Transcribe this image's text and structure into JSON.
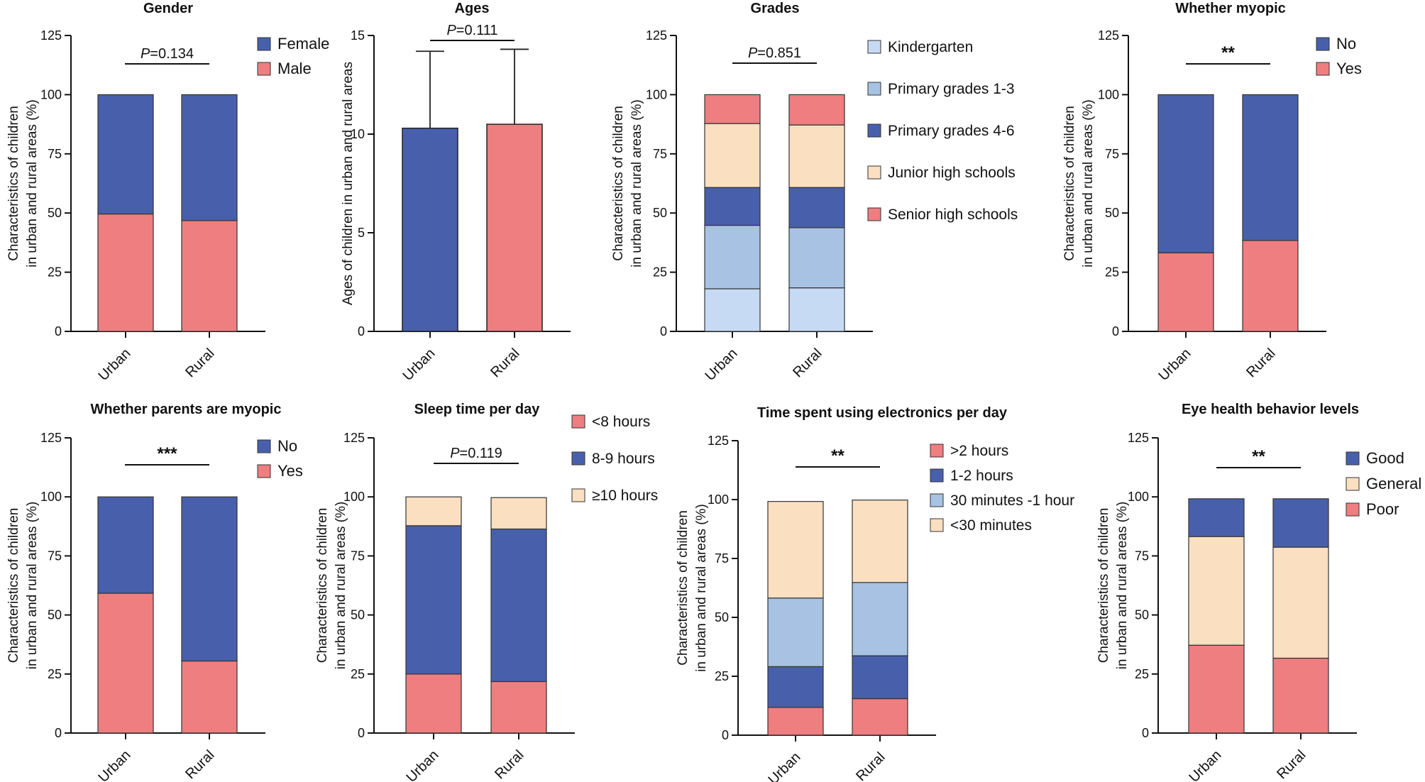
{
  "colors": {
    "female": "#4860AB",
    "male": "#EE7E80",
    "kindergarten": "#C6DAF4",
    "primary13": "#A7C2E3",
    "primary46": "#4860AB",
    "junior": "#FBDFC1",
    "senior": "#EE7E80",
    "cream": "#FBDFC1",
    "lightblue": "#A7C2E3",
    "blue": "#4860AB",
    "red": "#EE7E80"
  },
  "chart_data": [
    {
      "id": "gender",
      "type": "bar",
      "stacked": true,
      "title": "Gender",
      "ylabel": [
        "Characteristics of children",
        "in urban and rural areas (%)"
      ],
      "categories": [
        "Urban",
        "Rural"
      ],
      "ylim": [
        0,
        125
      ],
      "yticks": [
        0,
        25,
        50,
        75,
        100,
        125
      ],
      "yticklabels": [
        "0",
        "25",
        "50",
        "75",
        "100",
        "125"
      ],
      "series": [
        {
          "name": "Male",
          "color": "male",
          "values": [
            49.6,
            46.8
          ]
        },
        {
          "name": "Female",
          "color": "female",
          "values": [
            50.4,
            53.2
          ]
        }
      ],
      "legend": [
        {
          "name": "Female",
          "color": "female"
        },
        {
          "name": "Male",
          "color": "male"
        }
      ],
      "annotation": {
        "italic": "P",
        "rest": "=0.134"
      }
    },
    {
      "id": "ages",
      "type": "bar",
      "stacked": false,
      "title": "Ages",
      "ylabel": [
        "Ages of children in urban and rural areas"
      ],
      "categories": [
        "Urban",
        "Rural"
      ],
      "ylim": [
        0,
        15
      ],
      "yticks": [
        0,
        5,
        10,
        15
      ],
      "yticklabels": [
        "0",
        "5",
        "10",
        "15"
      ],
      "values": [
        10.3,
        10.5
      ],
      "errors": [
        3.9,
        3.8
      ],
      "bar_colors": [
        "female",
        "male"
      ],
      "legend": [],
      "annotation": {
        "italic": "P",
        "rest": "=0.111"
      }
    },
    {
      "id": "grades",
      "type": "bar",
      "stacked": true,
      "title": "Grades",
      "ylabel": [
        "Characteristics of children",
        "in urban and rural areas (%)"
      ],
      "categories": [
        "Urban",
        "Rural"
      ],
      "ylim": [
        0,
        125
      ],
      "yticks": [
        0,
        25,
        50,
        75,
        100,
        125
      ],
      "yticklabels": [
        "0",
        "25",
        "50",
        "75",
        "100",
        "125"
      ],
      "series": [
        {
          "name": "Kindergarten",
          "color": "kindergarten",
          "values": [
            18.0,
            18.4
          ]
        },
        {
          "name": "Primary grades 1-3",
          "color": "primary13",
          "values": [
            26.8,
            25.4
          ]
        },
        {
          "name": "Primary grades 4-6",
          "color": "primary46",
          "values": [
            16.0,
            17.0
          ]
        },
        {
          "name": "Junior high schools",
          "color": "junior",
          "values": [
            27.0,
            26.4
          ]
        },
        {
          "name": "Senior high schools",
          "color": "senior",
          "values": [
            12.2,
            12.8
          ]
        }
      ],
      "legend": [
        {
          "name": "Kindergarten",
          "color": "kindergarten"
        },
        {
          "name": "Primary grades 1-3",
          "color": "primary13"
        },
        {
          "name": "Primary grades 4-6",
          "color": "primary46"
        },
        {
          "name": "Junior high schools",
          "color": "junior"
        },
        {
          "name": "Senior high schools",
          "color": "senior"
        }
      ],
      "annotation": {
        "italic": "P",
        "rest": "=0.851"
      }
    },
    {
      "id": "myopic",
      "type": "bar",
      "stacked": true,
      "title": "Whether myopic",
      "ylabel": [
        "Characteristics of children",
        "in urban and rural areas (%)"
      ],
      "categories": [
        "Urban",
        "Rural"
      ],
      "ylim": [
        0,
        125
      ],
      "yticks": [
        0,
        25,
        50,
        75,
        100,
        125
      ],
      "yticklabels": [
        "0",
        "25",
        "50",
        "75",
        "100",
        "125"
      ],
      "series": [
        {
          "name": "Yes",
          "color": "red",
          "values": [
            33.2,
            38.4
          ]
        },
        {
          "name": "No",
          "color": "blue",
          "values": [
            66.8,
            61.6
          ]
        }
      ],
      "legend": [
        {
          "name": "No",
          "color": "blue"
        },
        {
          "name": "Yes",
          "color": "red"
        }
      ],
      "annotation": {
        "italic": "",
        "rest": "**"
      }
    },
    {
      "id": "parents",
      "type": "bar",
      "stacked": true,
      "title": "Whether parents are myopic",
      "ylabel": [
        "Characteristics of children",
        "in urban and rural areas (%)"
      ],
      "categories": [
        "Urban",
        "Rural"
      ],
      "ylim": [
        0,
        125
      ],
      "yticks": [
        0,
        25,
        50,
        75,
        100,
        125
      ],
      "yticklabels": [
        "0",
        "25",
        "50",
        "75",
        "100",
        "125"
      ],
      "series": [
        {
          "name": "Yes",
          "color": "red",
          "values": [
            59.2,
            30.5
          ]
        },
        {
          "name": "No",
          "color": "blue",
          "values": [
            40.8,
            69.5
          ]
        }
      ],
      "legend": [
        {
          "name": "No",
          "color": "blue"
        },
        {
          "name": "Yes",
          "color": "red"
        }
      ],
      "annotation": {
        "italic": "",
        "rest": "***"
      }
    },
    {
      "id": "sleep",
      "type": "bar",
      "stacked": true,
      "title": "Sleep time per day",
      "ylabel": [
        "Characteristics of children",
        "in urban and rural areas (%)"
      ],
      "categories": [
        "Urban",
        "Rural"
      ],
      "ylim": [
        0,
        125
      ],
      "yticks": [
        0,
        25,
        50,
        75,
        100,
        125
      ],
      "yticklabels": [
        "0",
        "25",
        "50",
        "75",
        "100",
        "125"
      ],
      "series": [
        {
          "name": "<8 hours",
          "color": "red",
          "values": [
            25.0,
            21.8
          ]
        },
        {
          "name": "8-9 hours",
          "color": "blue",
          "values": [
            62.8,
            64.6
          ]
        },
        {
          "name": "≥10 hours",
          "color": "cream",
          "values": [
            12.2,
            13.3
          ]
        }
      ],
      "legend": [
        {
          "name": "<8 hours",
          "color": "red"
        },
        {
          "name": "8-9 hours",
          "color": "blue"
        },
        {
          "name": "≥10 hours",
          "color": "cream"
        }
      ],
      "annotation": {
        "italic": "P",
        "rest": "=0.119"
      }
    },
    {
      "id": "electronics",
      "type": "bar",
      "stacked": true,
      "title": "Time spent using electronics per day",
      "ylabel": [
        "Characteristics of children",
        "in urban and rural areas (%)"
      ],
      "categories": [
        "Urban",
        "Rural"
      ],
      "ylim": [
        0,
        125
      ],
      "yticks": [
        0,
        25,
        50,
        75,
        100,
        125
      ],
      "yticklabels": [
        "0",
        "25",
        "50",
        "75",
        "100",
        "125"
      ],
      "series": [
        {
          "name": ">2 hours",
          "color": "red",
          "values": [
            11.8,
            15.5
          ]
        },
        {
          "name": "1-2 hours",
          "color": "blue",
          "values": [
            17.3,
            18.2
          ]
        },
        {
          "name": "30 minutes -1 hour",
          "color": "lightblue",
          "values": [
            29.1,
            31.1
          ]
        },
        {
          "name": "<30 minutes",
          "color": "cream",
          "values": [
            41.0,
            35.0
          ]
        }
      ],
      "legend": [
        {
          "name": ">2 hours",
          "color": "red"
        },
        {
          "name": "1-2 hours",
          "color": "blue"
        },
        {
          "name": "30 minutes -1 hour",
          "color": "lightblue"
        },
        {
          "name": "<30 minutes",
          "color": "cream"
        }
      ],
      "annotation": {
        "italic": "",
        "rest": "**"
      }
    },
    {
      "id": "eyehealth",
      "type": "bar",
      "stacked": true,
      "title": "Eye health behavior levels",
      "ylabel": [
        "Characteristics of children",
        "in urban and rural areas (%)"
      ],
      "categories": [
        "Urban",
        "Rural"
      ],
      "ylim": [
        0,
        125
      ],
      "yticks": [
        0,
        25,
        50,
        75,
        100,
        125
      ],
      "yticklabels": [
        "0",
        "25",
        "50",
        "75",
        "100",
        "125"
      ],
      "series": [
        {
          "name": "Poor",
          "color": "red",
          "values": [
            37.2,
            31.7
          ]
        },
        {
          "name": "General",
          "color": "cream",
          "values": [
            46.0,
            47.0
          ]
        },
        {
          "name": "Good",
          "color": "blue",
          "values": [
            16.0,
            20.5
          ]
        }
      ],
      "legend": [
        {
          "name": "Good",
          "color": "blue"
        },
        {
          "name": "General",
          "color": "cream"
        },
        {
          "name": "Poor",
          "color": "red"
        }
      ],
      "annotation": {
        "italic": "",
        "rest": "**"
      }
    }
  ]
}
